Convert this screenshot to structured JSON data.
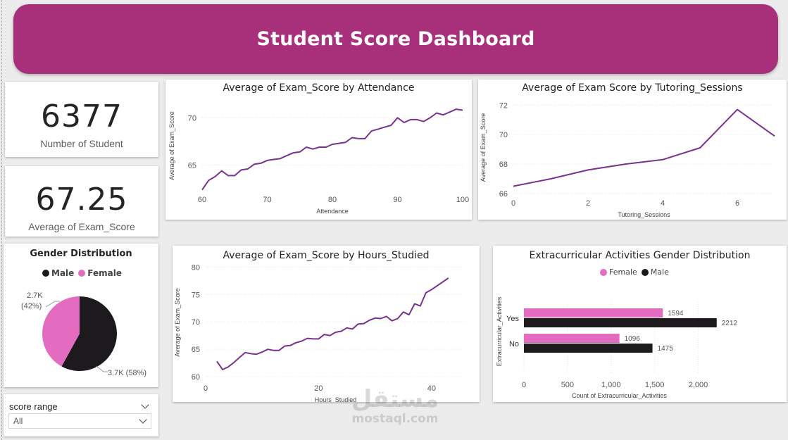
{
  "header": {
    "title": "Student Score Dashboard",
    "accent_color": "#a8307b"
  },
  "kpis": [
    {
      "value": "6377",
      "label": "Number of Student"
    },
    {
      "value": "67.25",
      "label": "Average of Exam_Score"
    }
  ],
  "gender_chart": {
    "title": "Gender Distribution",
    "legend": [
      "Male",
      "Female"
    ],
    "colors": {
      "Male": "#1c1a1d",
      "Female": "#e36cc0"
    },
    "chart_data": {
      "type": "pie",
      "categories": [
        "Male",
        "Female"
      ],
      "values": [
        58,
        42
      ],
      "labels": [
        {
          "line1": "3.7K (58%)",
          "line2": ""
        },
        {
          "line1": "2.7K",
          "line2": "(42%)"
        }
      ]
    }
  },
  "slicer": {
    "title": "score range",
    "selected": "All"
  },
  "attendance_chart": {
    "title": "Average of Exam_Score by Attendance",
    "chart_data": {
      "type": "line",
      "xlabel": "Attendance",
      "ylabel": "Average of Exam_Score",
      "xlim": [
        60,
        100
      ],
      "ylim": [
        62.3,
        71.8
      ],
      "xticks": [
        60,
        70,
        80,
        90,
        100
      ],
      "yticks": [
        65,
        70
      ],
      "x": [
        60,
        61,
        62,
        63,
        64,
        65,
        66,
        67,
        68,
        69,
        70,
        71,
        72,
        73,
        74,
        75,
        76,
        77,
        78,
        79,
        80,
        81,
        82,
        83,
        84,
        85,
        86,
        87,
        88,
        89,
        90,
        91,
        92,
        93,
        94,
        95,
        96,
        97,
        98,
        99,
        100
      ],
      "y": [
        62.4,
        63.4,
        63.8,
        64.4,
        63.9,
        63.9,
        64.5,
        64.6,
        65.1,
        65.2,
        65.5,
        65.6,
        65.7,
        66.0,
        66.3,
        66.4,
        66.9,
        66.7,
        66.9,
        66.9,
        67.2,
        67.3,
        67.4,
        67.9,
        67.8,
        67.8,
        68.6,
        68.8,
        69.0,
        69.2,
        70.0,
        69.5,
        69.8,
        69.8,
        69.6,
        70.0,
        70.5,
        70.3,
        70.6,
        70.9,
        70.8
      ],
      "color": "#7a3291"
    }
  },
  "tutoring_chart": {
    "title": "Average of Exam Score by Tutoring_Sessions",
    "chart_data": {
      "type": "line",
      "xlabel": "Tutoring_Sessions",
      "ylabel": "Average of Exam_Score",
      "xlim": [
        0,
        7
      ],
      "ylim": [
        65.95,
        72.3
      ],
      "xticks": [
        0,
        2,
        4,
        6
      ],
      "yticks": [
        66,
        68,
        70,
        72
      ],
      "x": [
        0,
        1,
        2,
        3,
        4,
        5,
        6,
        7
      ],
      "y": [
        66.5,
        67.0,
        67.6,
        68.0,
        68.3,
        69.1,
        71.7,
        69.9
      ],
      "color": "#7a3291"
    }
  },
  "hours_chart": {
    "title": "Average of Exam_Score by Hours_Studied",
    "chart_data": {
      "type": "line",
      "xlabel": "Hours_Studied",
      "ylabel": "Average of Exam_Score",
      "xlim": [
        0,
        46
      ],
      "ylim": [
        59.5,
        80.3
      ],
      "xticks": [
        0,
        20,
        40
      ],
      "yticks": [
        60,
        65,
        70,
        75,
        80
      ],
      "x": [
        2,
        3,
        4,
        5,
        6,
        7,
        8,
        9,
        10,
        11,
        12,
        13,
        14,
        15,
        16,
        17,
        18,
        19,
        20,
        21,
        22,
        23,
        24,
        25,
        26,
        27,
        28,
        29,
        30,
        31,
        32,
        33,
        34,
        35,
        36,
        37,
        38,
        39,
        40,
        43
      ],
      "y": [
        62.8,
        61.3,
        61.8,
        62.6,
        63.5,
        64.4,
        64.2,
        64.1,
        64.5,
        65.0,
        64.8,
        64.8,
        65.6,
        65.7,
        66.2,
        66.5,
        67.0,
        66.9,
        66.9,
        67.7,
        67.5,
        68.1,
        68.3,
        68.9,
        68.7,
        69.6,
        69.7,
        70.3,
        70.7,
        70.6,
        71.0,
        70.2,
        70.6,
        71.8,
        71.3,
        73.3,
        72.9,
        75.3,
        75.9,
        78.0
      ],
      "color": "#7a3291"
    }
  },
  "extracurricular_chart": {
    "title": "Extracurricular Activities Gender Distribution",
    "legend": [
      "Female",
      "Male"
    ],
    "chart_data": {
      "type": "bar",
      "orientation": "horizontal",
      "categories": [
        "Yes",
        "No"
      ],
      "series": [
        {
          "name": "Female",
          "values": [
            1594,
            1096
          ],
          "color": "#e36cc0"
        },
        {
          "name": "Male",
          "values": [
            2212,
            1475
          ],
          "color": "#1c1a1d"
        }
      ],
      "data_labels": [
        [
          "1594",
          "1096"
        ],
        [
          "2212",
          "1475"
        ]
      ],
      "xlabel": "Count of Extracurricular_Activities",
      "ylabel": "Extracurricular_Activities",
      "xlim": [
        0,
        2400
      ],
      "xticks": [
        0,
        500,
        1000,
        1500,
        2000
      ],
      "xtick_labels": [
        "0",
        "500",
        "1,000",
        "1,500",
        "2,000"
      ]
    }
  },
  "watermark": {
    "arabic": "مستقل",
    "latin": "mostaql.com"
  }
}
